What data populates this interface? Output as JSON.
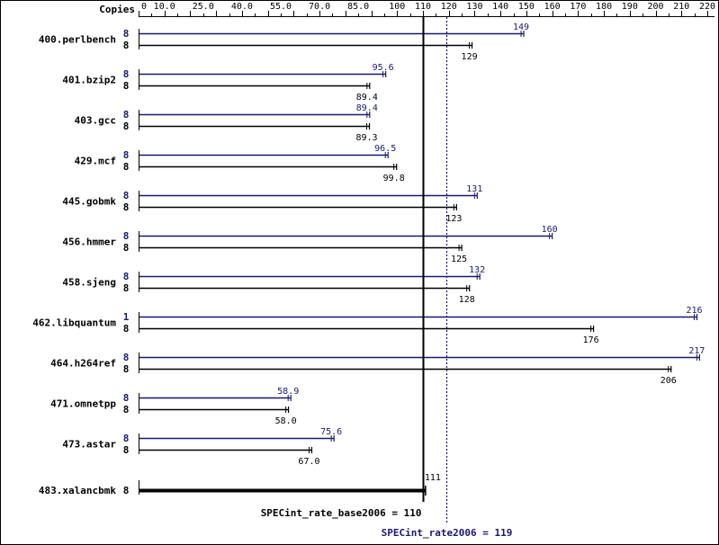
{
  "chart_data": {
    "type": "bar",
    "orientation": "horizontal",
    "copies_header": "Copies",
    "x_ticks": [
      "0",
      "10.0",
      "25.0",
      "40.0",
      "55.0",
      "70.0",
      "85.0",
      "100",
      "110",
      "120",
      "130",
      "140",
      "150",
      "160",
      "170",
      "180",
      "190",
      "200",
      "210",
      "220"
    ],
    "xlim": [
      0,
      220
    ],
    "colors": {
      "peak": "#191970",
      "base": "#000000"
    },
    "categories": [
      "400.perlbench",
      "401.bzip2",
      "403.gcc",
      "429.mcf",
      "445.gobmk",
      "456.hmmer",
      "458.sjeng",
      "462.libquantum",
      "464.h264ref",
      "471.omnetpp",
      "473.astar",
      "483.xalancbmk"
    ],
    "series": [
      {
        "name": "SPECint_rate2006",
        "color": "#191970",
        "copies": [
          "8",
          "8",
          "8",
          "8",
          "8",
          "8",
          "8",
          "1",
          "8",
          "8",
          "8",
          null
        ],
        "values": [
          149,
          95.6,
          89.4,
          96.5,
          131,
          160,
          132,
          216,
          217,
          58.9,
          75.6,
          null
        ],
        "labels": [
          "149",
          "95.6",
          "89.4",
          "96.5",
          "131",
          "160",
          "132",
          "216",
          "217",
          "58.9",
          "75.6",
          null
        ]
      },
      {
        "name": "SPECint_rate_base2006",
        "color": "#000000",
        "copies": [
          "8",
          "8",
          "8",
          "8",
          "8",
          "8",
          "8",
          "8",
          "8",
          "8",
          "8",
          "8"
        ],
        "values": [
          129,
          89.4,
          89.3,
          99.8,
          123,
          125,
          128,
          176,
          206,
          58.0,
          67.0,
          111
        ],
        "labels": [
          "129",
          "89.4",
          "89.3",
          "99.8",
          "123",
          "125",
          "128",
          "176",
          "206",
          "58.0",
          "67.0",
          "111"
        ]
      }
    ],
    "reference_lines": [
      {
        "label": "SPECint_rate_base2006 = 110",
        "value": 110,
        "style": "solid",
        "color": "#000000"
      },
      {
        "label": "SPECint_rate2006 = 119",
        "value": 119,
        "style": "dotted",
        "color": "#191970"
      }
    ]
  }
}
